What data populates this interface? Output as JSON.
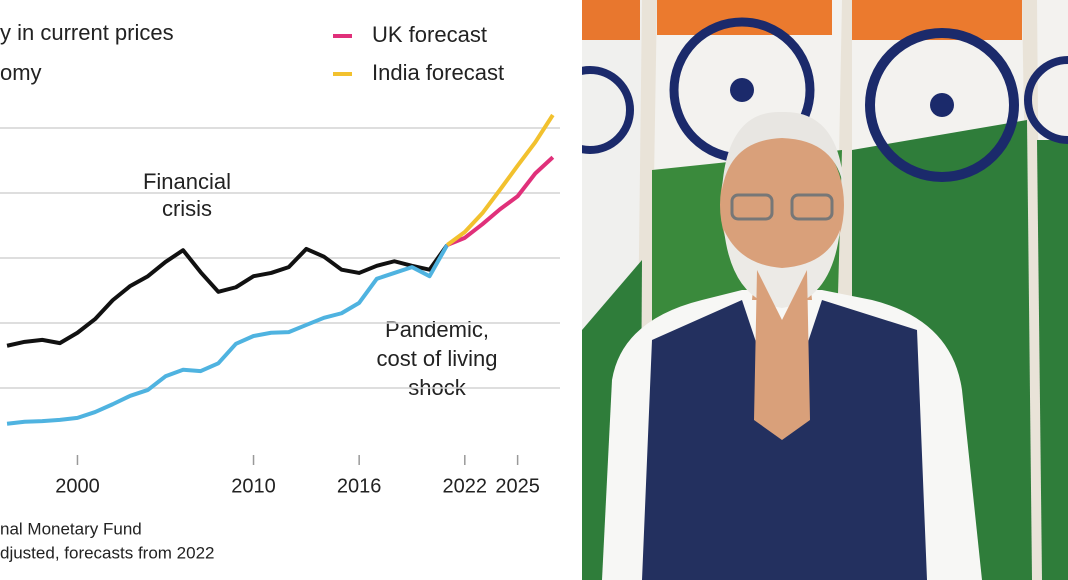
{
  "chart_data": {
    "type": "line",
    "title_lines": [
      "y in current prices",
      "omy"
    ],
    "x": [
      1996,
      1997,
      1998,
      1999,
      2000,
      2001,
      2002,
      2003,
      2004,
      2005,
      2006,
      2007,
      2008,
      2009,
      2010,
      2011,
      2012,
      2013,
      2014,
      2015,
      2016,
      2017,
      2018,
      2019,
      2020,
      2021,
      2022,
      2023,
      2024,
      2025,
      2026,
      2027
    ],
    "xlim": [
      1995.6,
      2028.6
    ],
    "xticks": [
      2000,
      2010,
      2016,
      2022,
      2025
    ],
    "ylim": [
      0,
      7
    ],
    "yticks": [
      1,
      2,
      3,
      4,
      5
    ],
    "grid": true,
    "series": [
      {
        "color": "#111111",
        "values": [
          1.65,
          1.71,
          1.74,
          1.69,
          1.85,
          2.06,
          2.35,
          2.57,
          2.72,
          2.94,
          3.12,
          2.78,
          2.48,
          2.55,
          2.72,
          2.77,
          2.86,
          3.14,
          3.02,
          2.82,
          2.77,
          2.88,
          2.95,
          2.88,
          2.82,
          3.2,
          null,
          null,
          null,
          null,
          null,
          null
        ]
      },
      {
        "color": "#4fb3e0",
        "values": [
          0.45,
          0.48,
          0.49,
          0.51,
          0.54,
          0.63,
          0.75,
          0.88,
          0.97,
          1.18,
          1.28,
          1.26,
          1.38,
          1.68,
          1.8,
          1.85,
          1.86,
          1.97,
          2.08,
          2.15,
          2.31,
          2.68,
          2.77,
          2.86,
          2.72,
          3.2,
          null,
          null,
          null,
          null,
          null,
          null
        ]
      },
      {
        "name": "UK forecast",
        "color": "#e0307a",
        "values": [
          null,
          null,
          null,
          null,
          null,
          null,
          null,
          null,
          null,
          null,
          null,
          null,
          null,
          null,
          null,
          null,
          null,
          null,
          null,
          null,
          null,
          null,
          null,
          null,
          null,
          3.2,
          3.31,
          3.52,
          3.75,
          3.95,
          4.3,
          4.55
        ]
      },
      {
        "name": "India forecast",
        "color": "#f2c12e",
        "values": [
          null,
          null,
          null,
          null,
          null,
          null,
          null,
          null,
          null,
          null,
          null,
          null,
          null,
          null,
          null,
          null,
          null,
          null,
          null,
          null,
          null,
          null,
          null,
          null,
          null,
          3.2,
          3.4,
          3.69,
          4.05,
          4.42,
          4.78,
          5.2
        ]
      }
    ],
    "annotations": [
      {
        "lines": [
          "Financial",
          "crisis"
        ]
      },
      {
        "lines": [
          "Pandemic,",
          "cost of living",
          "shock"
        ]
      }
    ],
    "source_lines": [
      "nal Monetary Fund",
      "djusted, forecasts from 2022"
    ]
  }
}
